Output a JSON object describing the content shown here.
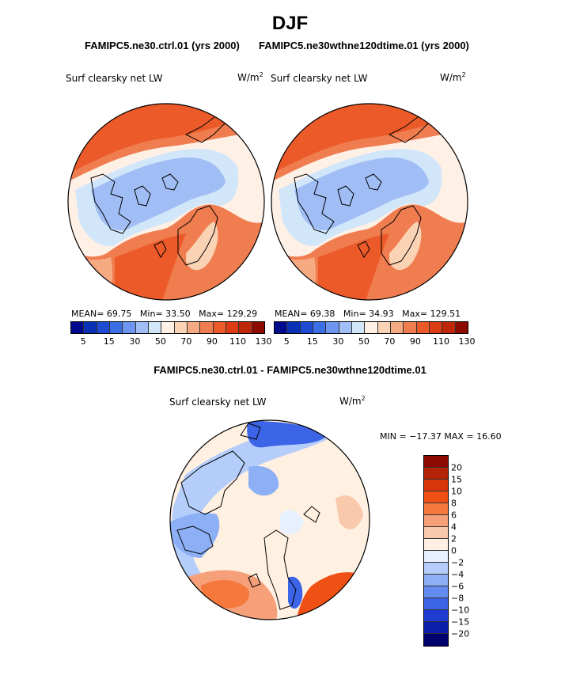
{
  "title": "DJF",
  "panels": {
    "ctrl": {
      "subtitle": "FAMIPC5.ne30.ctrl.01 (yrs 2000)",
      "variable": "Surf clearsky net LW",
      "units_base": "W/m",
      "units_exp": "2",
      "mean_label": "MEAN=",
      "mean": "69.75",
      "min_label": "Min=",
      "min": "33.50",
      "max_label": "Max=",
      "max": "129.29"
    },
    "exp": {
      "subtitle": "FAMIPC5.ne30wthne120dtime.01 (yrs 2000)",
      "variable": "Surf clearsky net LW",
      "units_base": "W/m",
      "units_exp": "2",
      "mean_label": "MEAN=",
      "mean": "69.38",
      "min_label": "Min=",
      "min": "34.93",
      "max_label": "Max=",
      "max": "129.51"
    },
    "diff": {
      "subtitle": "FAMIPC5.ne30.ctrl.01 - FAMIPC5.ne30wthne120dtime.01",
      "variable": "Surf clearsky net LW",
      "units_base": "W/m",
      "units_exp": "2",
      "minmax_text": "MIN = −17.37 MAX =   16.60"
    }
  },
  "colorbar_abs": {
    "colors": [
      "#000a8c",
      "#0a32b4",
      "#1e4bd2",
      "#3c6ee6",
      "#6e96f0",
      "#a0bef5",
      "#d2e6fa",
      "#fff0e6",
      "#fad2b4",
      "#f5aa82",
      "#f07d50",
      "#eb5a28",
      "#dc3c14",
      "#be2808",
      "#8c0a00"
    ],
    "labels": [
      "5",
      "15",
      "30",
      "50",
      "70",
      "90",
      "110",
      "130"
    ]
  },
  "colorbar_diff": {
    "colors": [
      "#8c0a00",
      "#b42305",
      "#d7370a",
      "#f05014",
      "#f5783c",
      "#f5a078",
      "#fac8aa",
      "#fff0e1",
      "#e6f0ff",
      "#b4cdfa",
      "#8caff5",
      "#648cf0",
      "#3c64e6",
      "#1e3cd2",
      "#0a1eaa",
      "#00006e"
    ],
    "labels": [
      "20",
      "15",
      "10",
      "8",
      "6",
      "4",
      "2",
      "0",
      "−2",
      "−4",
      "−6",
      "−8",
      "−10",
      "−15",
      "−20"
    ]
  }
}
